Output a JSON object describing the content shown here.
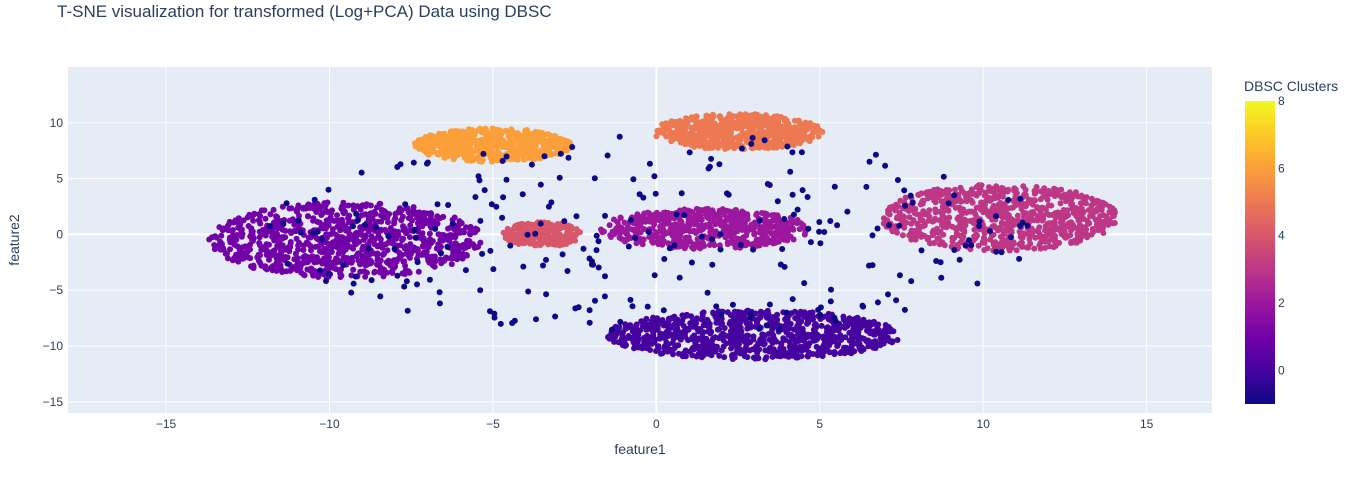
{
  "chart_data": {
    "type": "scatter",
    "title": "T-SNE visualization for transformed (Log+PCA) Data using DBSC",
    "xlabel": "feature1",
    "ylabel": "feature2",
    "xlim": [
      -18,
      17
    ],
    "ylim": [
      -16,
      15
    ],
    "xticks": [
      -15,
      -10,
      -5,
      0,
      5,
      10,
      15
    ],
    "yticks": [
      -15,
      -10,
      -5,
      0,
      5,
      10
    ],
    "xtick_labels": [
      "−15",
      "−10",
      "−5",
      "0",
      "5",
      "10",
      "15"
    ],
    "ytick_labels": [
      "−15",
      "−10",
      "−5",
      "0",
      "5",
      "10"
    ],
    "grid": true,
    "colorbar": {
      "title": "DBSC Clusters",
      "range": [
        -1,
        8
      ],
      "ticks": [
        0,
        2,
        4,
        6,
        8
      ],
      "tick_labels": [
        "0",
        "2",
        "4",
        "6",
        "8"
      ],
      "colors": [
        "#0d0887",
        "#46039f",
        "#7201a8",
        "#9c179e",
        "#bd3786",
        "#d8576b",
        "#ed7953",
        "#fb9f3a",
        "#fdca26",
        "#f0f921"
      ]
    },
    "clusters": [
      {
        "label": 1,
        "color": "#7201a8",
        "center": [
          -9.5,
          -0.5
        ],
        "spread": [
          4.2,
          3.4
        ],
        "points": 900
      },
      {
        "label": 0,
        "color": "#46039f",
        "center": [
          3.0,
          -9.0
        ],
        "spread": [
          4.5,
          2.2
        ],
        "points": 800
      },
      {
        "label": 2,
        "color": "#9c179e",
        "center": [
          1.5,
          0.5
        ],
        "spread": [
          3.2,
          1.8
        ],
        "points": 550
      },
      {
        "label": 3,
        "color": "#bd3786",
        "center": [
          10.5,
          1.5
        ],
        "spread": [
          3.6,
          3.0
        ],
        "points": 800
      },
      {
        "label": 4,
        "color": "#d8576b",
        "center": [
          -3.5,
          0.0
        ],
        "spread": [
          1.2,
          1.1
        ],
        "points": 220
      },
      {
        "label": 5,
        "color": "#ed7953",
        "center": [
          2.5,
          9.2
        ],
        "spread": [
          2.6,
          1.6
        ],
        "points": 600
      },
      {
        "label": 6,
        "color": "#fb9f3a",
        "center": [
          -5.0,
          8.0
        ],
        "spread": [
          2.4,
          1.5
        ],
        "points": 550
      },
      {
        "label": -1,
        "color": "#0d0887",
        "center": [
          0.0,
          0.0
        ],
        "spread": [
          12.0,
          9.0
        ],
        "points": 260
      }
    ]
  }
}
